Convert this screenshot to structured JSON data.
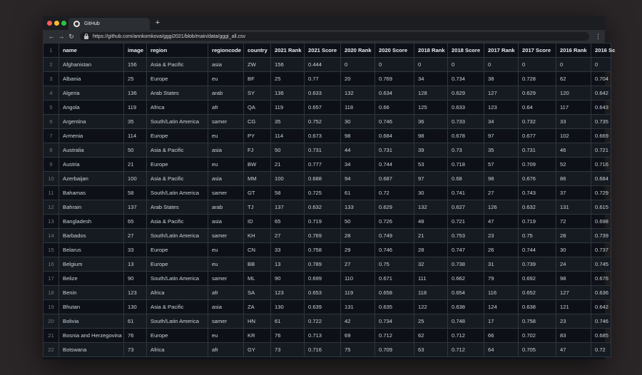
{
  "browser": {
    "tab_title": "GitHub",
    "new_tab_label": "+",
    "url": "https://github.com/annkomkova/gggi2021/blob/main/data/gggi_all.csv",
    "back_glyph": "←",
    "forward_glyph": "→",
    "reload_glyph": "↻",
    "menu_glyph": "⋮",
    "icons": [
      "github-icon",
      "lock-icon"
    ]
  },
  "table": {
    "header_row_number": "1",
    "columns": [
      "name",
      "image",
      "region",
      "regioncode",
      "country",
      "2021 Rank",
      "2021 Score",
      "2020 Rank",
      "2020 Score",
      "2018 Rank",
      "2018 Score",
      "2017 Rank",
      "2017 Score",
      "2016 Rank",
      "2016 Sc"
    ],
    "rows": [
      [
        "2",
        "Afghanistan",
        "156",
        "Asia & Pacific",
        "asia",
        "ZW",
        "156",
        "0.444",
        "0",
        "0",
        "0",
        "0",
        "0",
        "0",
        "0",
        "0"
      ],
      [
        "3",
        "Albania",
        "25",
        "Europe",
        "eu",
        "BF",
        "25",
        "0.77",
        "20",
        "0.769",
        "34",
        "0.734",
        "38",
        "0.728",
        "62",
        "0.704"
      ],
      [
        "4",
        "Algeria",
        "136",
        "Arab States",
        "arab",
        "SY",
        "136",
        "0.633",
        "132",
        "0.634",
        "128",
        "0.629",
        "127",
        "0.629",
        "120",
        "0.642"
      ],
      [
        "5",
        "Angola",
        "119",
        "Africa",
        "afr",
        "QA",
        "119",
        "0.657",
        "118",
        "0.66",
        "125",
        "0.633",
        "123",
        "0.64",
        "117",
        "0.643"
      ],
      [
        "6",
        "Argentina",
        "35",
        "South/Latin America",
        "samer",
        "CG",
        "35",
        "0.752",
        "30",
        "0.746",
        "36",
        "0.733",
        "34",
        "0.732",
        "33",
        "0.735"
      ],
      [
        "7",
        "Armenia",
        "114",
        "Europe",
        "eu",
        "PY",
        "114",
        "0.673",
        "98",
        "0.684",
        "98",
        "0.678",
        "97",
        "0.677",
        "102",
        "0.669"
      ],
      [
        "8",
        "Australia",
        "50",
        "Asia & Pacific",
        "asia",
        "FJ",
        "50",
        "0.731",
        "44",
        "0.731",
        "39",
        "0.73",
        "35",
        "0.731",
        "46",
        "0.721"
      ],
      [
        "9",
        "Austria",
        "21",
        "Europe",
        "eu",
        "BW",
        "21",
        "0.777",
        "34",
        "0.744",
        "53",
        "0.718",
        "57",
        "0.709",
        "52",
        "0.716"
      ],
      [
        "10",
        "Azerbaijan",
        "100",
        "Asia & Pacific",
        "asia",
        "MM",
        "100",
        "0.688",
        "94",
        "0.687",
        "97",
        "0.68",
        "98",
        "0.676",
        "86",
        "0.684"
      ],
      [
        "11",
        "Bahamas",
        "58",
        "South/Latin America",
        "samer",
        "GT",
        "58",
        "0.725",
        "61",
        "0.72",
        "30",
        "0.741",
        "27",
        "0.743",
        "37",
        "0.729"
      ],
      [
        "12",
        "Bahrain",
        "137",
        "Arab States",
        "arab",
        "TJ",
        "137",
        "0.632",
        "133",
        "0.629",
        "132",
        "0.627",
        "126",
        "0.632",
        "131",
        "0.615"
      ],
      [
        "13",
        "Bangladesh",
        "65",
        "Asia & Pacific",
        "asia",
        "ID",
        "65",
        "0.719",
        "50",
        "0.726",
        "48",
        "0.721",
        "47",
        "0.719",
        "72",
        "0.698"
      ],
      [
        "14",
        "Barbados",
        "27",
        "South/Latin America",
        "samer",
        "KH",
        "27",
        "0.769",
        "28",
        "0.749",
        "21",
        "0.753",
        "23",
        "0.75",
        "28",
        "0.739"
      ],
      [
        "15",
        "Belarus",
        "33",
        "Europe",
        "eu",
        "CN",
        "33",
        "0.758",
        "29",
        "0.746",
        "28",
        "0.747",
        "26",
        "0.744",
        "30",
        "0.737"
      ],
      [
        "16",
        "Belgium",
        "13",
        "Europe",
        "eu",
        "BB",
        "13",
        "0.789",
        "27",
        "0.75",
        "32",
        "0.738",
        "31",
        "0.739",
        "24",
        "0.745"
      ],
      [
        "17",
        "Belize",
        "90",
        "South/Latin America",
        "samer",
        "ML",
        "90",
        "0.699",
        "110",
        "0.671",
        "111",
        "0.662",
        "79",
        "0.692",
        "98",
        "0.676"
      ],
      [
        "18",
        "Benin",
        "123",
        "Africa",
        "afr",
        "SA",
        "123",
        "0.653",
        "119",
        "0.658",
        "118",
        "0.654",
        "116",
        "0.652",
        "127",
        "0.636"
      ],
      [
        "19",
        "Bhutan",
        "130",
        "Asia & Pacific",
        "asia",
        "ZA",
        "130",
        "0.639",
        "131",
        "0.635",
        "122",
        "0.638",
        "124",
        "0.638",
        "121",
        "0.642"
      ],
      [
        "20",
        "Bolivia",
        "61",
        "South/Latin America",
        "samer",
        "HN",
        "61",
        "0.722",
        "42",
        "0.734",
        "25",
        "0.748",
        "17",
        "0.758",
        "23",
        "0.746"
      ],
      [
        "21",
        "Bosnia and Herzegovina",
        "76",
        "Europe",
        "eu",
        "KR",
        "76",
        "0.713",
        "69",
        "0.712",
        "62",
        "0.712",
        "66",
        "0.702",
        "83",
        "0.685"
      ],
      [
        "22",
        "Botswana",
        "73",
        "Africa",
        "afr",
        "GY",
        "73",
        "0.716",
        "75",
        "0.709",
        "63",
        "0.712",
        "64",
        "0.705",
        "47",
        "0.72"
      ]
    ]
  },
  "colors": {
    "page_bg": "#0d1117",
    "row_alt_bg": "#161b22",
    "grid_line": "#30363d",
    "text": "#c9d1d9",
    "row_number": "#6e7681"
  }
}
